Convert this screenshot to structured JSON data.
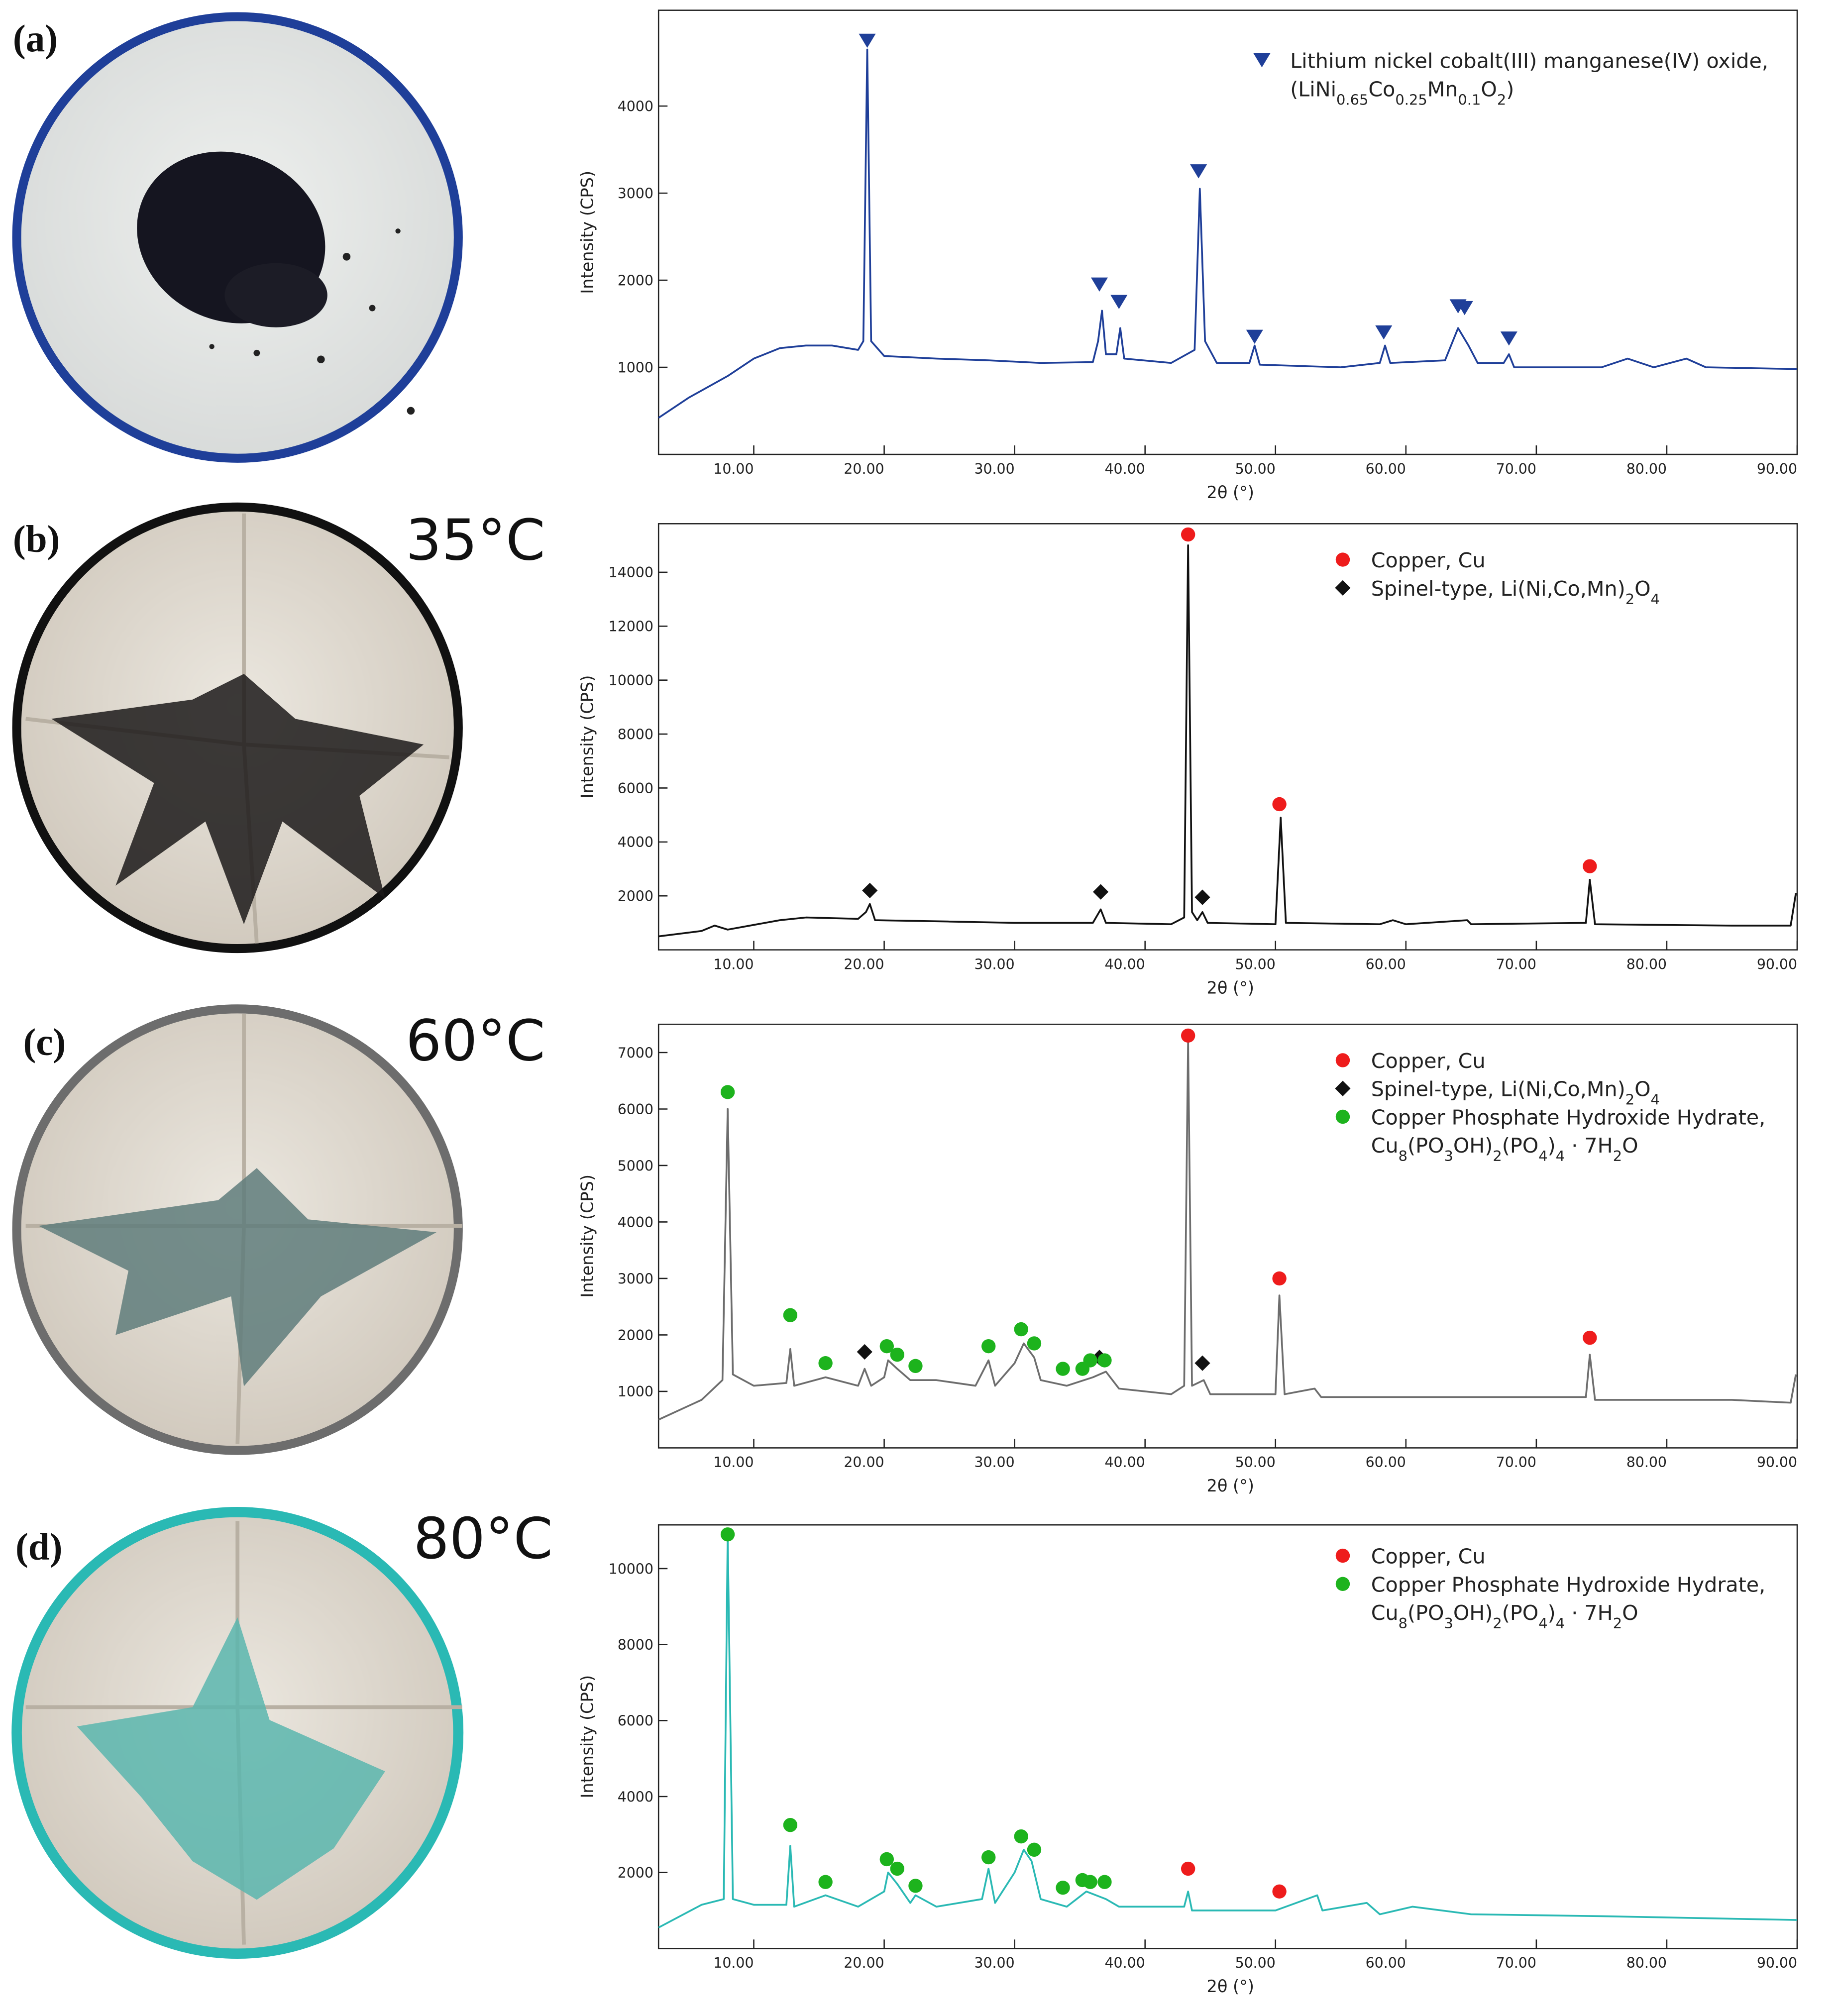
{
  "chart_data": [
    {
      "type": "line",
      "label": "(a)",
      "xlabel": "2θ (°)",
      "ylabel": "Intensity (CPS)",
      "xlim": [
        2.7,
        90
      ],
      "ylim": [
        0,
        5100
      ],
      "xticks": [
        {
          "value": 10,
          "label": "10.00"
        },
        {
          "value": 20,
          "label": "20.00"
        },
        {
          "value": 30,
          "label": "30.00"
        },
        {
          "value": 40,
          "label": "40.00"
        },
        {
          "value": 50,
          "label": "50.00"
        },
        {
          "value": 60,
          "label": "60.00"
        },
        {
          "value": 70,
          "label": "70.00"
        },
        {
          "value": 80,
          "label": "80.00"
        },
        {
          "value": 90,
          "label": "90.00"
        }
      ],
      "yticks": [
        1000,
        2000,
        3000,
        4000
      ],
      "x": [
        2.7,
        5,
        8,
        10,
        12,
        14,
        16,
        18,
        18.4,
        18.7,
        19.0,
        20,
        24,
        28,
        32,
        36,
        36.4,
        36.7,
        37.0,
        37.8,
        38.1,
        38.4,
        42,
        43.8,
        44.2,
        44.6,
        45.5,
        48,
        48.4,
        48.8,
        55,
        58,
        58.4,
        58.8,
        63,
        64,
        64.8,
        65.5,
        67.5,
        67.9,
        68.3,
        75,
        77,
        79,
        81.5,
        83,
        90
      ],
      "series": [
        {
          "color": "#1f3f99",
          "values": [
            420,
            650,
            900,
            1100,
            1220,
            1250,
            1250,
            1200,
            1300,
            4650,
            1300,
            1130,
            1100,
            1080,
            1050,
            1060,
            1300,
            1650,
            1150,
            1150,
            1450,
            1100,
            1050,
            1200,
            3050,
            1300,
            1050,
            1050,
            1250,
            1030,
            1000,
            1050,
            1250,
            1050,
            1080,
            1450,
            1250,
            1050,
            1050,
            1150,
            1000,
            1000,
            1100,
            1000,
            1100,
            1000,
            980
          ]
        }
      ],
      "phases": [
        {
          "name": [
            "Lithium nickel cobalt(III) manganese(IV) oxide,",
            "(LiNi0.65Co0.25Mn0.1O2)"
          ],
          "color": "#1f3f99",
          "marker": "triangle-down",
          "x": [
            18.7,
            36.5,
            38.0,
            44.1,
            48.4,
            58.3,
            64.0,
            64.5,
            67.9
          ],
          "y": [
            4750,
            1950,
            1750,
            3250,
            1350,
            1400,
            1700,
            1680,
            1330
          ]
        }
      ]
    },
    {
      "type": "line",
      "label": "(b)",
      "temperature": "35°C",
      "xlabel": "2θ (°)",
      "ylabel": "Intensity (CPS)",
      "xlim": [
        2.7,
        90
      ],
      "ylim": [
        0,
        15800
      ],
      "xticks": [
        {
          "value": 10,
          "label": "10.00"
        },
        {
          "value": 20,
          "label": "20.00"
        },
        {
          "value": 30,
          "label": "30.00"
        },
        {
          "value": 40,
          "label": "40.00"
        },
        {
          "value": 50,
          "label": "50.00"
        },
        {
          "value": 60,
          "label": "60.00"
        },
        {
          "value": 70,
          "label": "70.00"
        },
        {
          "value": 80,
          "label": "80.00"
        },
        {
          "value": 90,
          "label": "90.00"
        }
      ],
      "yticks": [
        2000,
        4000,
        6000,
        8000,
        10000,
        12000,
        14000
      ],
      "x": [
        2.7,
        6,
        7,
        8,
        12,
        14,
        18,
        18.6,
        18.9,
        19.3,
        25,
        30,
        36,
        36.6,
        37,
        42,
        43.0,
        43.3,
        43.6,
        44.0,
        44.4,
        44.8,
        50,
        50.4,
        50.8,
        58,
        59,
        60,
        64.7,
        65,
        73.8,
        74.1,
        74.5,
        85,
        89.5,
        89.9
      ],
      "series": [
        {
          "color": "#111111",
          "values": [
            500,
            700,
            900,
            750,
            1100,
            1200,
            1150,
            1400,
            1700,
            1100,
            1050,
            1000,
            1000,
            1500,
            1000,
            950,
            1200,
            15000,
            1400,
            1100,
            1400,
            1000,
            950,
            4900,
            1000,
            950,
            1100,
            950,
            1100,
            950,
            1000,
            2600,
            950,
            900,
            900,
            2100
          ]
        }
      ],
      "phases": [
        {
          "name": [
            "Copper, Cu"
          ],
          "color": "#ee1c1c",
          "marker": "circle",
          "x": [
            43.3,
            50.3,
            74.1
          ],
          "y": [
            15400,
            5400,
            3100
          ]
        },
        {
          "name": [
            "Spinel-type, Li(Ni,Co,Mn)2O4"
          ],
          "color": "#111111",
          "marker": "diamond",
          "x": [
            18.9,
            36.6,
            44.4
          ],
          "y": [
            2200,
            2150,
            1950
          ]
        }
      ]
    },
    {
      "type": "line",
      "label": "(c)",
      "temperature": "60°C",
      "xlabel": "2θ (°)",
      "ylabel": "Intensity (CPS)",
      "xlim": [
        2.7,
        90
      ],
      "ylim": [
        0,
        7500
      ],
      "xticks": [
        {
          "value": 10,
          "label": "10.00"
        },
        {
          "value": 20,
          "label": "20.00"
        },
        {
          "value": 30,
          "label": "30.00"
        },
        {
          "value": 40,
          "label": "40.00"
        },
        {
          "value": 50,
          "label": "50.00"
        },
        {
          "value": 60,
          "label": "60.00"
        },
        {
          "value": 70,
          "label": "70.00"
        },
        {
          "value": 80,
          "label": "80.00"
        },
        {
          "value": 90,
          "label": "90.00"
        }
      ],
      "yticks": [
        1000,
        2000,
        3000,
        4000,
        5000,
        6000,
        7000
      ],
      "x": [
        2.7,
        6,
        7.6,
        8.0,
        8.4,
        10,
        12.5,
        12.8,
        13.1,
        15.5,
        18,
        18.5,
        19,
        20,
        20.3,
        21,
        22,
        24,
        27,
        28,
        28.5,
        30,
        30.7,
        31.5,
        32,
        34,
        36,
        37,
        38,
        42,
        43.0,
        43.3,
        43.6,
        44.5,
        45,
        50,
        50.3,
        50.7,
        53,
        53.5,
        60,
        73.8,
        74.1,
        74.5,
        85,
        89.5,
        89.9
      ],
      "series": [
        {
          "color": "#6d6d6d",
          "values": [
            500,
            850,
            1200,
            6000,
            1300,
            1100,
            1150,
            1750,
            1100,
            1250,
            1100,
            1400,
            1100,
            1250,
            1550,
            1400,
            1200,
            1200,
            1100,
            1550,
            1100,
            1500,
            1850,
            1600,
            1200,
            1100,
            1250,
            1350,
            1050,
            950,
            1100,
            7200,
            1100,
            1200,
            950,
            950,
            2700,
            950,
            1050,
            900,
            900,
            900,
            1650,
            850,
            850,
            800,
            1300
          ]
        }
      ],
      "phases": [
        {
          "name": [
            "Copper, Cu"
          ],
          "color": "#ee1c1c",
          "marker": "circle",
          "x": [
            43.3,
            50.3,
            74.1
          ],
          "y": [
            7300,
            3000,
            1950
          ]
        },
        {
          "name": [
            "Spinel-type, Li(Ni,Co,Mn)2O4"
          ],
          "color": "#111111",
          "marker": "diamond",
          "x": [
            18.5,
            36.5,
            44.4
          ],
          "y": [
            1700,
            1600,
            1500
          ]
        },
        {
          "name": [
            "Copper Phosphate Hydroxide Hydrate,",
            "Cu8(PO3OH)2(PO4)4 · 7H2O"
          ],
          "color": "#1db31d",
          "marker": "circle",
          "x": [
            8.0,
            12.8,
            15.5,
            20.2,
            21,
            22.4,
            28,
            30.5,
            31.5,
            33.7,
            35.2,
            35.8,
            36.9
          ],
          "y": [
            6300,
            2350,
            1500,
            1800,
            1650,
            1450,
            1800,
            2100,
            1850,
            1400,
            1400,
            1550,
            1550
          ]
        }
      ]
    },
    {
      "type": "line",
      "label": "(d)",
      "temperature": "80°C",
      "xlabel": "2θ (°)",
      "ylabel": "Intensity (CPS)",
      "xlim": [
        2.7,
        90
      ],
      "ylim": [
        0,
        11150
      ],
      "xticks": [
        {
          "value": 10,
          "label": "10.00"
        },
        {
          "value": 20,
          "label": "20.00"
        },
        {
          "value": 30,
          "label": "30.00"
        },
        {
          "value": 40,
          "label": "40.00"
        },
        {
          "value": 50,
          "label": "50.00"
        },
        {
          "value": 60,
          "label": "60.00"
        },
        {
          "value": 70,
          "label": "70.00"
        },
        {
          "value": 80,
          "label": "80.00"
        },
        {
          "value": 90,
          "label": "90.00"
        }
      ],
      "yticks": [
        2000,
        4000,
        6000,
        8000,
        10000
      ],
      "x": [
        2.7,
        6,
        7.7,
        8.0,
        8.4,
        10,
        12.5,
        12.8,
        13.1,
        15.5,
        18,
        20,
        20.3,
        21,
        22,
        22.4,
        24,
        27.5,
        28,
        28.5,
        30,
        30.7,
        31.3,
        32,
        34,
        35.5,
        37,
        38,
        43.0,
        43.3,
        43.6,
        50,
        53.2,
        53.6,
        57,
        58,
        60.5,
        65,
        75,
        90
      ],
      "series": [
        {
          "color": "#2ab9b4",
          "values": [
            550,
            1150,
            1300,
            10900,
            1300,
            1150,
            1150,
            2700,
            1100,
            1400,
            1100,
            1500,
            2000,
            1700,
            1200,
            1400,
            1100,
            1300,
            2100,
            1200,
            2000,
            2600,
            2300,
            1300,
            1100,
            1500,
            1300,
            1100,
            1100,
            1500,
            1000,
            1000,
            1400,
            1000,
            1200,
            900,
            1100,
            900,
            850,
            750
          ]
        }
      ],
      "phases": [
        {
          "name": [
            "Copper, Cu"
          ],
          "color": "#ee1c1c",
          "marker": "circle",
          "x": [
            43.3,
            50.3
          ],
          "y": [
            2100,
            1500
          ]
        },
        {
          "name": [
            "Copper Phosphate Hydroxide Hydrate,",
            "Cu8(PO3OH)2(PO4)4 · 7H2O"
          ],
          "color": "#1db31d",
          "marker": "circle",
          "x": [
            8.0,
            12.8,
            15.5,
            20.2,
            21,
            22.4,
            28,
            30.5,
            31.5,
            33.7,
            35.2,
            35.8,
            36.9
          ],
          "y": [
            10900,
            3250,
            1750,
            2350,
            2100,
            1650,
            2400,
            2950,
            2600,
            1600,
            1800,
            1750,
            1750
          ]
        }
      ]
    }
  ]
}
